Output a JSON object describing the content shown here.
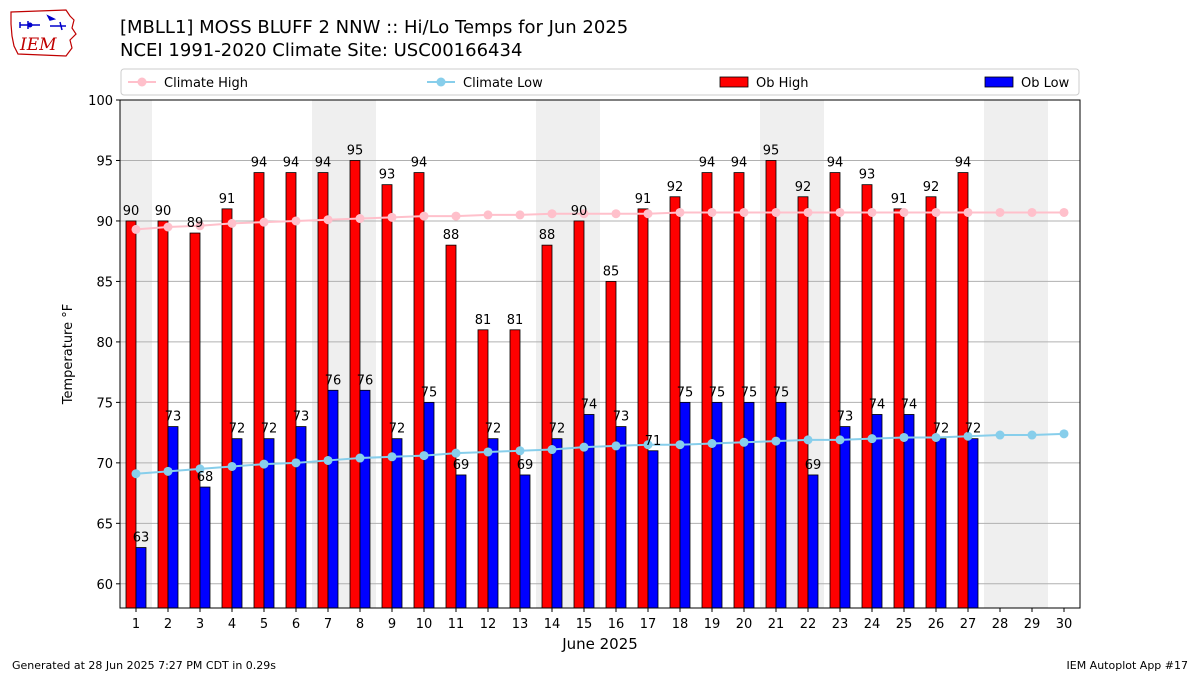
{
  "header": {
    "title_line1": "[MBLL1] MOSS BLUFF 2 NNW :: Hi/Lo Temps for Jun 2025",
    "title_line2": "NCEI 1991-2020 Climate Site: USC00166434",
    "logo_text": "IEM",
    "logo_icon": "iowa-state-outline-logo"
  },
  "footer": {
    "left": "Generated at 28 Jun 2025 7:27 PM CDT in 0.29s",
    "right": "IEM Autoplot App #17"
  },
  "chart_data": {
    "type": "bar",
    "xlabel": "June 2025",
    "ylabel": "Temperature °F",
    "ylim": [
      58,
      100
    ],
    "yticks": [
      60,
      65,
      70,
      75,
      80,
      85,
      90,
      95,
      100
    ],
    "grid": true,
    "legend_placement": "top",
    "categories": [
      1,
      2,
      3,
      4,
      5,
      6,
      7,
      8,
      9,
      10,
      11,
      12,
      13,
      14,
      15,
      16,
      17,
      18,
      19,
      20,
      21,
      22,
      23,
      24,
      25,
      26,
      27,
      28,
      29,
      30
    ],
    "weekend_shading": [
      [
        1,
        1
      ],
      [
        7,
        8
      ],
      [
        14,
        15
      ],
      [
        21,
        22
      ],
      [
        28,
        29
      ]
    ],
    "series": [
      {
        "name": "Climate High",
        "kind": "line",
        "color": "#ffc0cb",
        "values": [
          89.3,
          89.5,
          89.6,
          89.8,
          89.9,
          90.0,
          90.1,
          90.2,
          90.3,
          90.4,
          90.4,
          90.5,
          90.5,
          90.6,
          90.6,
          90.6,
          90.6,
          90.7,
          90.7,
          90.7,
          90.7,
          90.7,
          90.7,
          90.7,
          90.7,
          90.7,
          90.7,
          90.7,
          90.7,
          90.7
        ]
      },
      {
        "name": "Climate Low",
        "kind": "line",
        "color": "#87ceeb",
        "values": [
          69.1,
          69.3,
          69.5,
          69.7,
          69.9,
          70.0,
          70.2,
          70.4,
          70.5,
          70.6,
          70.8,
          70.9,
          71.0,
          71.1,
          71.3,
          71.4,
          71.5,
          71.5,
          71.6,
          71.7,
          71.8,
          71.9,
          71.9,
          72.0,
          72.1,
          72.1,
          72.2,
          72.3,
          72.3,
          72.4
        ]
      },
      {
        "name": "Ob High",
        "kind": "bar",
        "color": "#ff0000",
        "values": [
          90,
          90,
          89,
          91,
          94,
          94,
          94,
          95,
          93,
          94,
          88,
          81,
          81,
          88,
          90,
          85,
          91,
          92,
          94,
          94,
          95,
          92,
          94,
          93,
          91,
          92,
          94,
          null,
          null,
          null
        ]
      },
      {
        "name": "Ob Low",
        "kind": "bar",
        "color": "#0000ff",
        "values": [
          63,
          73,
          68,
          72,
          72,
          73,
          76,
          76,
          72,
          75,
          69,
          72,
          69,
          72,
          74,
          73,
          71,
          75,
          75,
          75,
          75,
          69,
          73,
          74,
          74,
          72,
          72,
          null,
          null,
          null
        ]
      }
    ]
  }
}
